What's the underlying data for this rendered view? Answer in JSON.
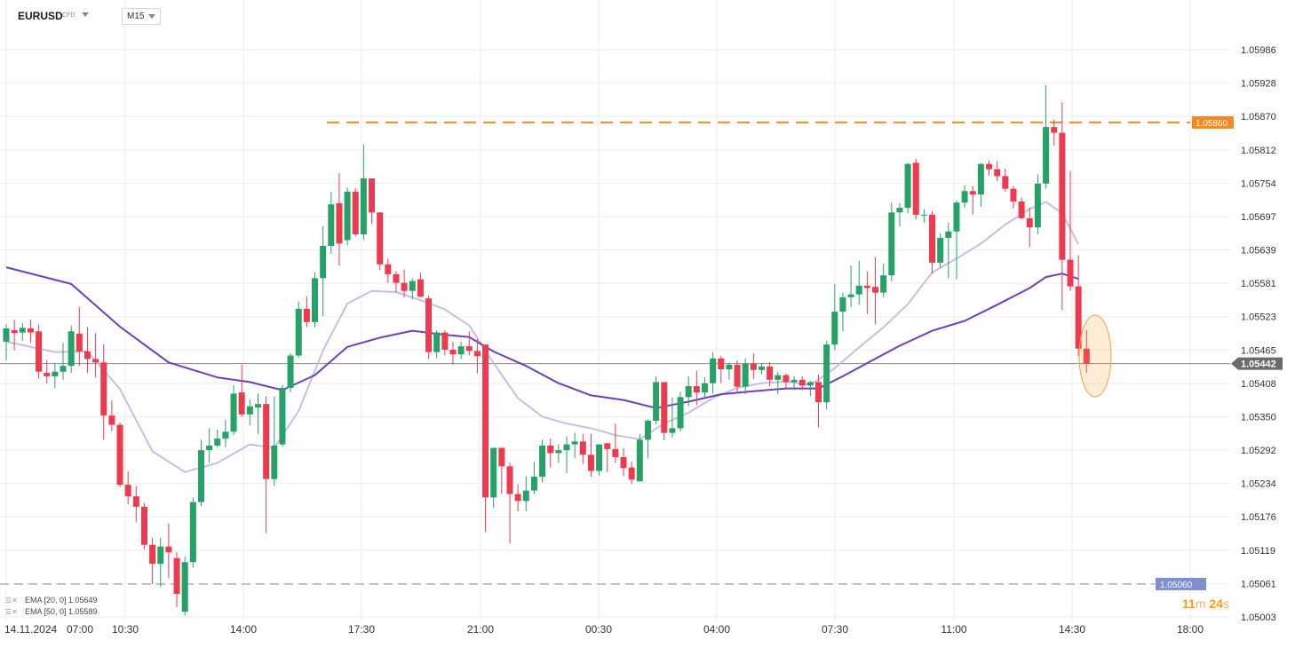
{
  "header": {
    "symbol": "EURUSD",
    "instrument_type": "CFD",
    "timeframe": "M15"
  },
  "price_axis": {
    "ticks": [
      "1.05986",
      "1.05928",
      "1.05870",
      "1.05812",
      "1.05754",
      "1.05697",
      "1.05639",
      "1.05581",
      "1.05523",
      "1.05465",
      "1.05408",
      "1.05350",
      "1.05292",
      "1.05234",
      "1.05176",
      "1.05119",
      "1.05061",
      "1.05003"
    ]
  },
  "time_axis": {
    "labels": [
      "14.11.2024",
      "07:00",
      "10:30",
      "14:00",
      "17:30",
      "21:00",
      "00:30",
      "04:00",
      "07:30",
      "11:00",
      "14:30",
      "18:00"
    ]
  },
  "levels": {
    "resistance": {
      "label": "1.05860",
      "value": 1.0586,
      "color": "#f5891f"
    },
    "support": {
      "label": "1.05060",
      "value": 1.0506,
      "color": "#7f8fcf"
    },
    "current_price": {
      "label": "1.05442",
      "value": 1.05442,
      "color": "#6b6b6b"
    }
  },
  "indicators": {
    "ema20": {
      "label": "EMA [20, 0] 1.05649",
      "color": "#c8bde6"
    },
    "ema50": {
      "label": "EMA [50, 0] 1.05589",
      "color": "#6b3fc0"
    }
  },
  "countdown": {
    "minutes": "11",
    "minutes_unit": "m",
    "seconds": "24",
    "seconds_unit": "s"
  },
  "colors": {
    "up": "#26a269",
    "down": "#ee3a4f",
    "grid": "#eeeeee"
  },
  "chart_data": {
    "type": "candlestick",
    "symbol": "EURUSD",
    "timeframe": "M15",
    "ylim": [
      1.05003,
      1.05986
    ],
    "candles": [
      [
        1.0548,
        1.0551,
        1.05448,
        1.05503
      ],
      [
        1.055,
        1.05518,
        1.05465,
        1.05495
      ],
      [
        1.05496,
        1.05512,
        1.05482,
        1.05504
      ],
      [
        1.05503,
        1.05518,
        1.05478,
        1.05496
      ],
      [
        1.05498,
        1.0551,
        1.05416,
        1.05428
      ],
      [
        1.05426,
        1.05448,
        1.05408,
        1.0542
      ],
      [
        1.0542,
        1.05443,
        1.054,
        1.05428
      ],
      [
        1.05428,
        1.05478,
        1.05414,
        1.05438
      ],
      [
        1.05438,
        1.05508,
        1.05426,
        1.05498
      ],
      [
        1.05494,
        1.0554,
        1.05438,
        1.05463
      ],
      [
        1.05463,
        1.05505,
        1.05426,
        1.0545
      ],
      [
        1.0545,
        1.05495,
        1.05418,
        1.05444
      ],
      [
        1.05444,
        1.05475,
        1.0531,
        1.05352
      ],
      [
        1.05352,
        1.05378,
        1.05325,
        1.05336
      ],
      [
        1.05336,
        1.0534,
        1.05228,
        1.05232
      ],
      [
        1.05232,
        1.05255,
        1.05198,
        1.05212
      ],
      [
        1.05212,
        1.0523,
        1.05168,
        1.05194
      ],
      [
        1.05194,
        1.052,
        1.0512,
        1.05128
      ],
      [
        1.05128,
        1.0514,
        1.0506,
        1.05095
      ],
      [
        1.05095,
        1.0514,
        1.05055,
        1.05125
      ],
      [
        1.05125,
        1.05165,
        1.0507,
        1.05115
      ],
      [
        1.05105,
        1.05115,
        1.0502,
        1.05043
      ],
      [
        1.05012,
        1.05108,
        1.05005,
        1.05098
      ],
      [
        1.05098,
        1.0521,
        1.05088,
        1.05202
      ],
      [
        1.05202,
        1.0531,
        1.05195,
        1.05292
      ],
      [
        1.05292,
        1.0533,
        1.0527,
        1.053
      ],
      [
        1.053,
        1.05328,
        1.05296,
        1.05312
      ],
      [
        1.05312,
        1.05345,
        1.05297,
        1.05324
      ],
      [
        1.05324,
        1.05405,
        1.05318,
        1.0539
      ],
      [
        1.05392,
        1.0544,
        1.0535,
        1.05354
      ],
      [
        1.05354,
        1.0538,
        1.05335,
        1.05368
      ],
      [
        1.05366,
        1.0539,
        1.0532,
        1.05372
      ],
      [
        1.05372,
        1.05385,
        1.05148,
        1.05242
      ],
      [
        1.05242,
        1.05385,
        1.0523,
        1.053
      ],
      [
        1.05302,
        1.05405,
        1.05298,
        1.054
      ],
      [
        1.054,
        1.0546,
        1.05392,
        1.05456
      ],
      [
        1.05456,
        1.0555,
        1.05452,
        1.05537
      ],
      [
        1.05537,
        1.05559,
        1.05505,
        1.05514
      ],
      [
        1.05514,
        1.056,
        1.05505,
        1.0559
      ],
      [
        1.0559,
        1.0568,
        1.05524,
        1.05646
      ],
      [
        1.05646,
        1.0574,
        1.05632,
        1.05718
      ],
      [
        1.0572,
        1.05772,
        1.05612,
        1.0565
      ],
      [
        1.05656,
        1.05747,
        1.05647,
        1.0574
      ],
      [
        1.0574,
        1.05746,
        1.05662,
        1.05666
      ],
      [
        1.05666,
        1.05822,
        1.05656,
        1.05763
      ],
      [
        1.05763,
        1.05762,
        1.05684,
        1.05704
      ],
      [
        1.05704,
        1.05704,
        1.05604,
        1.05614
      ],
      [
        1.05614,
        1.05624,
        1.05582,
        1.05597
      ],
      [
        1.05597,
        1.05602,
        1.05566,
        1.05582
      ],
      [
        1.05582,
        1.05605,
        1.05557,
        1.05568
      ],
      [
        1.05568,
        1.0559,
        1.05553,
        1.05585
      ],
      [
        1.05588,
        1.056,
        1.05557,
        1.05558
      ],
      [
        1.05555,
        1.0556,
        1.0545,
        1.05462
      ],
      [
        1.05462,
        1.055,
        1.05452,
        1.05496
      ],
      [
        1.05496,
        1.055,
        1.05456,
        1.05466
      ],
      [
        1.05466,
        1.0548,
        1.0544,
        1.05458
      ],
      [
        1.05458,
        1.0548,
        1.0545,
        1.05472
      ],
      [
        1.05472,
        1.05498,
        1.05456,
        1.05464
      ],
      [
        1.05464,
        1.05485,
        1.05425,
        1.05455
      ],
      [
        1.05475,
        1.05474,
        1.0515,
        1.0521
      ],
      [
        1.0521,
        1.05296,
        1.05192,
        1.05296
      ],
      [
        1.05296,
        1.05296,
        1.05216,
        1.05264
      ],
      [
        1.05264,
        1.0527,
        1.0513,
        1.05216
      ],
      [
        1.05216,
        1.05233,
        1.05186,
        1.05204
      ],
      [
        1.05204,
        1.05247,
        1.05186,
        1.05222
      ],
      [
        1.05222,
        1.05272,
        1.05216,
        1.05246
      ],
      [
        1.05246,
        1.0531,
        1.05236,
        1.053
      ],
      [
        1.053,
        1.05312,
        1.05262,
        1.05287
      ],
      [
        1.05287,
        1.05302,
        1.0527,
        1.05292
      ],
      [
        1.05292,
        1.05316,
        1.05252,
        1.05302
      ],
      [
        1.05302,
        1.05322,
        1.05278,
        1.05307
      ],
      [
        1.05307,
        1.0532,
        1.05268,
        1.05284
      ],
      [
        1.05284,
        1.0532,
        1.05246,
        1.05256
      ],
      [
        1.05256,
        1.053,
        1.05248,
        1.05302
      ],
      [
        1.05304,
        1.05305,
        1.05254,
        1.05294
      ],
      [
        1.05294,
        1.05338,
        1.0527,
        1.0528
      ],
      [
        1.0528,
        1.05295,
        1.05247,
        1.05261
      ],
      [
        1.05262,
        1.05272,
        1.05233,
        1.05241
      ],
      [
        1.05238,
        1.0532,
        1.05238,
        1.0531
      ],
      [
        1.0531,
        1.05345,
        1.05278,
        1.05343
      ],
      [
        1.05343,
        1.0542,
        1.05337,
        1.0541
      ],
      [
        1.0541,
        1.0541,
        1.05309,
        1.05322
      ],
      [
        1.05322,
        1.05383,
        1.05314,
        1.0533
      ],
      [
        1.0533,
        1.05393,
        1.05324,
        1.05384
      ],
      [
        1.05384,
        1.0542,
        1.05368,
        1.05403
      ],
      [
        1.05403,
        1.0543,
        1.0537,
        1.05392
      ],
      [
        1.05392,
        1.05418,
        1.05383,
        1.05408
      ],
      [
        1.05408,
        1.05462,
        1.0539,
        1.05451
      ],
      [
        1.05451,
        1.05455,
        1.05408,
        1.05432
      ],
      [
        1.05432,
        1.05444,
        1.05414,
        1.0544
      ],
      [
        1.0544,
        1.05448,
        1.05392,
        1.05402
      ],
      [
        1.05402,
        1.05451,
        1.05389,
        1.05442
      ],
      [
        1.05442,
        1.0546,
        1.05415,
        1.05431
      ],
      [
        1.05431,
        1.05442,
        1.05424,
        1.05437
      ],
      [
        1.05437,
        1.05445,
        1.05403,
        1.05414
      ],
      [
        1.05414,
        1.05428,
        1.05389,
        1.05422
      ],
      [
        1.05422,
        1.05425,
        1.054,
        1.0541
      ],
      [
        1.0541,
        1.0542,
        1.05396,
        1.05414
      ],
      [
        1.05414,
        1.0542,
        1.05396,
        1.05404
      ],
      [
        1.05404,
        1.05412,
        1.05386,
        1.0541
      ],
      [
        1.0541,
        1.05423,
        1.05332,
        1.05375
      ],
      [
        1.05375,
        1.05482,
        1.05363,
        1.05475
      ],
      [
        1.05475,
        1.0558,
        1.05465,
        1.05532
      ],
      [
        1.05532,
        1.05565,
        1.05498,
        1.05557
      ],
      [
        1.05557,
        1.05612,
        1.0554,
        1.05562
      ],
      [
        1.05562,
        1.0562,
        1.05544,
        1.05577
      ],
      [
        1.05577,
        1.05602,
        1.05528,
        1.05573
      ],
      [
        1.05575,
        1.05627,
        1.0551,
        1.05565
      ],
      [
        1.05565,
        1.05615,
        1.05557,
        1.05595
      ],
      [
        1.05595,
        1.05721,
        1.05585,
        1.05704
      ],
      [
        1.05704,
        1.0572,
        1.0568,
        1.05712
      ],
      [
        1.05712,
        1.0579,
        1.05702,
        1.05788
      ],
      [
        1.0579,
        1.05797,
        1.05692,
        1.057
      ],
      [
        1.057,
        1.0571,
        1.05686,
        1.057
      ],
      [
        1.057,
        1.05706,
        1.05598,
        1.05617
      ],
      [
        1.05617,
        1.05668,
        1.05608,
        1.0566
      ],
      [
        1.0566,
        1.05686,
        1.0559,
        1.05671
      ],
      [
        1.05671,
        1.05725,
        1.05588,
        1.05721
      ],
      [
        1.05721,
        1.05751,
        1.05712,
        1.05741
      ],
      [
        1.05741,
        1.0575,
        1.057,
        1.05735
      ],
      [
        1.05735,
        1.0579,
        1.05714,
        1.05788
      ],
      [
        1.05788,
        1.05794,
        1.05768,
        1.05779
      ],
      [
        1.05779,
        1.05793,
        1.05758,
        1.05767
      ],
      [
        1.05767,
        1.0578,
        1.0574,
        1.05745
      ],
      [
        1.05745,
        1.0575,
        1.05711,
        1.05723
      ],
      [
        1.05723,
        1.0573,
        1.05692,
        1.05694
      ],
      [
        1.05694,
        1.05712,
        1.05644,
        1.05678
      ],
      [
        1.05678,
        1.0577,
        1.05666,
        1.05754
      ],
      [
        1.05754,
        1.05925,
        1.05745,
        1.05852
      ],
      [
        1.05852,
        1.05865,
        1.0582,
        1.05842
      ],
      [
        1.05842,
        1.05895,
        1.05535,
        1.05622
      ],
      [
        1.05622,
        1.05776,
        1.05568,
        1.05576
      ],
      [
        1.05576,
        1.0563,
        1.05455,
        1.05468
      ],
      [
        1.05468,
        1.055,
        1.05426,
        1.05442
      ]
    ],
    "ema20": [
      [
        0,
        1.0548
      ],
      [
        6,
        1.05462
      ],
      [
        10,
        1.05463
      ],
      [
        14,
        1.05398
      ],
      [
        18,
        1.0529
      ],
      [
        22,
        1.05254
      ],
      [
        26,
        1.0527
      ],
      [
        30,
        1.05302
      ],
      [
        33,
        1.05296
      ],
      [
        36,
        1.0536
      ],
      [
        39,
        1.05465
      ],
      [
        42,
        1.05546
      ],
      [
        45,
        1.05568
      ],
      [
        48,
        1.05566
      ],
      [
        51,
        1.05552
      ],
      [
        54,
        1.05536
      ],
      [
        57,
        1.05508
      ],
      [
        60,
        1.05443
      ],
      [
        63,
        1.05382
      ],
      [
        66,
        1.0535
      ],
      [
        69,
        1.05338
      ],
      [
        72,
        1.0533
      ],
      [
        75,
        1.05318
      ],
      [
        78,
        1.05311
      ],
      [
        81,
        1.05338
      ],
      [
        84,
        1.05357
      ],
      [
        87,
        1.05382
      ],
      [
        90,
        1.054
      ],
      [
        93,
        1.05408
      ],
      [
        96,
        1.05411
      ],
      [
        99,
        1.05405
      ],
      [
        102,
        1.05434
      ],
      [
        105,
        1.0547
      ],
      [
        108,
        1.05505
      ],
      [
        111,
        1.05545
      ],
      [
        114,
        1.056
      ],
      [
        117,
        1.05624
      ],
      [
        120,
        1.0565
      ],
      [
        123,
        1.05683
      ],
      [
        126,
        1.0571
      ],
      [
        128,
        1.05722
      ],
      [
        130,
        1.05703
      ],
      [
        132,
        1.05649
      ]
    ],
    "ema50": [
      [
        0,
        1.05609
      ],
      [
        8,
        1.0558
      ],
      [
        14,
        1.05506
      ],
      [
        20,
        1.05444
      ],
      [
        26,
        1.05418
      ],
      [
        30,
        1.0541
      ],
      [
        34,
        1.05396
      ],
      [
        38,
        1.05422
      ],
      [
        42,
        1.05471
      ],
      [
        46,
        1.05487
      ],
      [
        50,
        1.05499
      ],
      [
        54,
        1.05492
      ],
      [
        57,
        1.05488
      ],
      [
        60,
        1.05463
      ],
      [
        64,
        1.05438
      ],
      [
        68,
        1.05408
      ],
      [
        72,
        1.05387
      ],
      [
        76,
        1.05379
      ],
      [
        80,
        1.05365
      ],
      [
        84,
        1.05376
      ],
      [
        88,
        1.05389
      ],
      [
        92,
        1.05394
      ],
      [
        96,
        1.05399
      ],
      [
        100,
        1.05399
      ],
      [
        103,
        1.0542
      ],
      [
        106,
        1.05443
      ],
      [
        110,
        1.05473
      ],
      [
        114,
        1.05499
      ],
      [
        118,
        1.05516
      ],
      [
        122,
        1.05544
      ],
      [
        126,
        1.05573
      ],
      [
        128,
        1.05592
      ],
      [
        130,
        1.05598
      ],
      [
        132,
        1.05589
      ]
    ]
  }
}
